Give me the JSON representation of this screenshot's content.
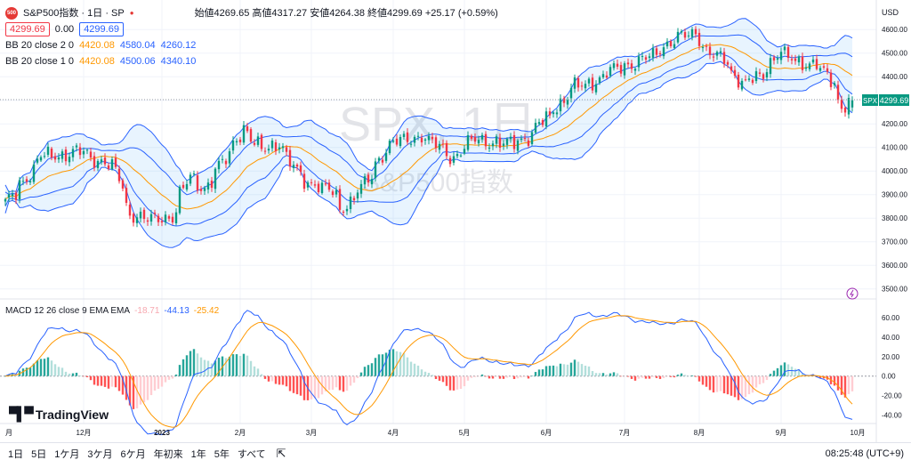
{
  "header": {
    "symbol_title": "S&P500指数 · 1日 · SP",
    "logo_text": "500",
    "ohlc": "始値4269.65 高値4317.27 安値4264.38 終値4299.69 +25.17 (+0.59%)",
    "price_sell": "4299.69",
    "spread": "0.00",
    "price_buy": "4299.69",
    "bb1_label": "BB 20 close 2 0",
    "bb1_basis": "4420.08",
    "bb1_upper": "4580.04",
    "bb1_lower": "4260.12",
    "bb2_label": "BB 20 close 1 0",
    "bb2_basis": "4420.08",
    "bb2_upper": "4500.06",
    "bb2_lower": "4340.10",
    "currency": "USD"
  },
  "watermark": {
    "line1": "SPX, 1日",
    "line2": "S&P500指数"
  },
  "macd_legend": {
    "label": "MACD 12 26 close 9 EMA EMA",
    "hist": "-18.71",
    "macd": "-44.13",
    "signal": "-25.42"
  },
  "price_axis": [
    "4600.00",
    "4500.00",
    "4400.00",
    "4300.00",
    "4200.00",
    "4100.00",
    "4000.00",
    "3900.00",
    "3800.00",
    "3700.00",
    "3600.00",
    "3500.00"
  ],
  "macd_axis": [
    "60.00",
    "40.00",
    "20.00",
    "0.00",
    "-20.00",
    "-40.00"
  ],
  "spx_tag": {
    "label": "SPX",
    "value": "4299.69"
  },
  "time_axis": [
    "月",
    "12月",
    "2023",
    "2月",
    "3月",
    "4月",
    "5月",
    "6月",
    "7月",
    "8月",
    "9月",
    "10月"
  ],
  "tradingview": "TradingView",
  "ranges": [
    "1日",
    "5日",
    "1ケ月",
    "3ケ月",
    "6ケ月",
    "年初来",
    "1年",
    "5年",
    "すべて"
  ],
  "clock": "08:25:48 (UTC+9)",
  "colors": {
    "up": "#089981",
    "down": "#f23645",
    "bb_outer": "#2962ff",
    "bb_basis": "#ff9800",
    "macd": "#2962ff",
    "signal": "#ff9800"
  },
  "chart_data": {
    "type": "candlestick",
    "anchors": [
      [
        "11-01",
        3860
      ],
      [
        "11-10",
        3990
      ],
      [
        "11-15",
        4060
      ],
      [
        "11-30",
        4080
      ],
      [
        "12-01",
        4075
      ],
      [
        "12-13",
        4020
      ],
      [
        "12-20",
        3820
      ],
      [
        "12-28",
        3790
      ],
      [
        "01-05",
        3810
      ],
      [
        "01-12",
        3970
      ],
      [
        "01-18",
        3930
      ],
      [
        "01-25",
        4030
      ],
      [
        "02-02",
        4180
      ],
      [
        "02-09",
        4090
      ],
      [
        "02-16",
        4120
      ],
      [
        "02-24",
        3980
      ],
      [
        "03-01",
        3950
      ],
      [
        "03-09",
        3910
      ],
      [
        "03-13",
        3840
      ],
      [
        "03-22",
        3940
      ],
      [
        "03-31",
        4110
      ],
      [
        "04-13",
        4150
      ],
      [
        "04-26",
        4060
      ],
      [
        "05-05",
        4140
      ],
      [
        "05-16",
        4110
      ],
      [
        "05-26",
        4150
      ],
      [
        "06-01",
        4220
      ],
      [
        "06-12",
        4350
      ],
      [
        "06-20",
        4380
      ],
      [
        "06-30",
        4440
      ],
      [
        "07-12",
        4480
      ],
      [
        "07-20",
        4550
      ],
      [
        "07-31",
        4590
      ],
      [
        "08-03",
        4510
      ],
      [
        "08-10",
        4470
      ],
      [
        "08-18",
        4370
      ],
      [
        "08-25",
        4400
      ],
      [
        "09-01",
        4515
      ],
      [
        "09-07",
        4460
      ],
      [
        "09-15",
        4460
      ],
      [
        "09-20",
        4400
      ],
      [
        "09-26",
        4280
      ],
      [
        "09-29",
        4300
      ]
    ],
    "last": {
      "open": 4269.65,
      "high": 4317.27,
      "low": 4264.38,
      "close": 4299.69
    },
    "ylim": [
      3480,
      4650
    ],
    "macd_ylim": [
      -45,
      70
    ],
    "legend": "top-left"
  }
}
